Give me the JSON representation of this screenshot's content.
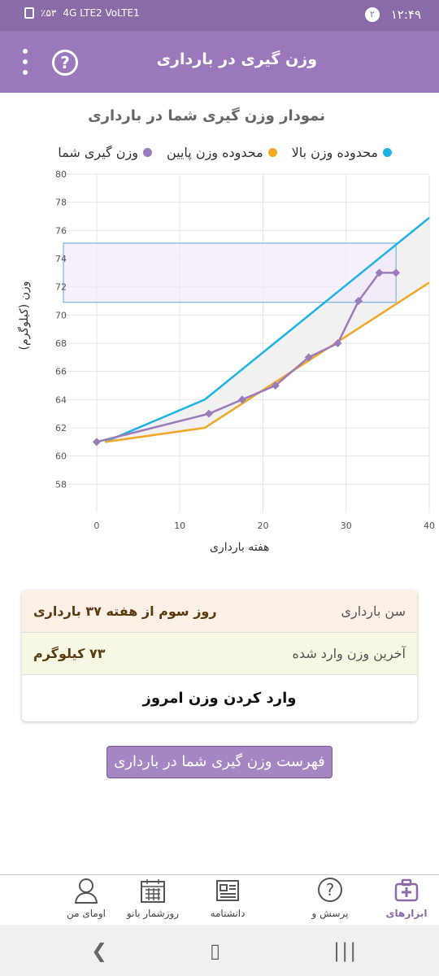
{
  "status_bar": {
    "time": "۱۲:۴۹",
    "notification_count": "۲",
    "battery": "٪۵۳",
    "network": "4G LTE2 VoLTE1"
  },
  "app_bar": {
    "title": "وزن گیری در بارداری"
  },
  "chart_data": {
    "type": "line",
    "title": "نمودار وزن گیری شما در بارداری",
    "xlabel": "هفته بارداری",
    "ylabel": "وزن (کیلوگرم)",
    "xlim": [
      -4,
      40
    ],
    "ylim": [
      56,
      80
    ],
    "x_ticks": [
      0,
      10,
      20,
      30,
      40
    ],
    "y_ticks": [
      58,
      60,
      62,
      64,
      66,
      68,
      70,
      72,
      74,
      76,
      78,
      80
    ],
    "legend_position": "top",
    "series": [
      {
        "name": "محدوده وزن بالا",
        "color": "#1fb3e3",
        "points": [
          [
            1,
            61
          ],
          [
            13,
            64
          ],
          [
            40,
            76.9
          ]
        ]
      },
      {
        "name": "محدوده وزن پایین",
        "color": "#f0a825",
        "points": [
          [
            1,
            61
          ],
          [
            13,
            62
          ],
          [
            40,
            72.3
          ]
        ]
      },
      {
        "name": "وزن گیری شما",
        "color": "#9b7bb9",
        "points": [
          [
            0,
            61
          ],
          [
            13.5,
            63
          ],
          [
            17.5,
            64
          ],
          [
            21.5,
            65
          ],
          [
            25.5,
            67
          ],
          [
            29,
            68
          ],
          [
            31.5,
            71
          ],
          [
            34,
            73
          ],
          [
            36,
            73
          ]
        ]
      }
    ],
    "highlight_box": {
      "x": [
        -4,
        36
      ],
      "y": [
        70.9,
        75.1
      ]
    }
  },
  "info": {
    "age_label": "سن بارداری",
    "age_value": "روز سوم از هفته ۳۷ بارداری",
    "last_weight_label": "آخرین وزن وارد شده",
    "last_weight_value": "۷۳ کیلوگرم",
    "enter_weight": "وارد کردن وزن امروز"
  },
  "list_button": "فهرست وزن گیری شما در بارداری",
  "bottom_nav": [
    {
      "label": "ابزارهای",
      "icon": "medical-kit-icon",
      "active": true
    },
    {
      "label": "پرسش و",
      "icon": "question-bubble-icon",
      "active": false
    },
    {
      "label": "دانشنامه",
      "icon": "newspaper-icon",
      "active": false
    },
    {
      "label": "روزشمار بانو",
      "icon": "calendar-icon",
      "active": false
    },
    {
      "label": "اومای من",
      "icon": "avatar-icon",
      "active": false
    }
  ]
}
